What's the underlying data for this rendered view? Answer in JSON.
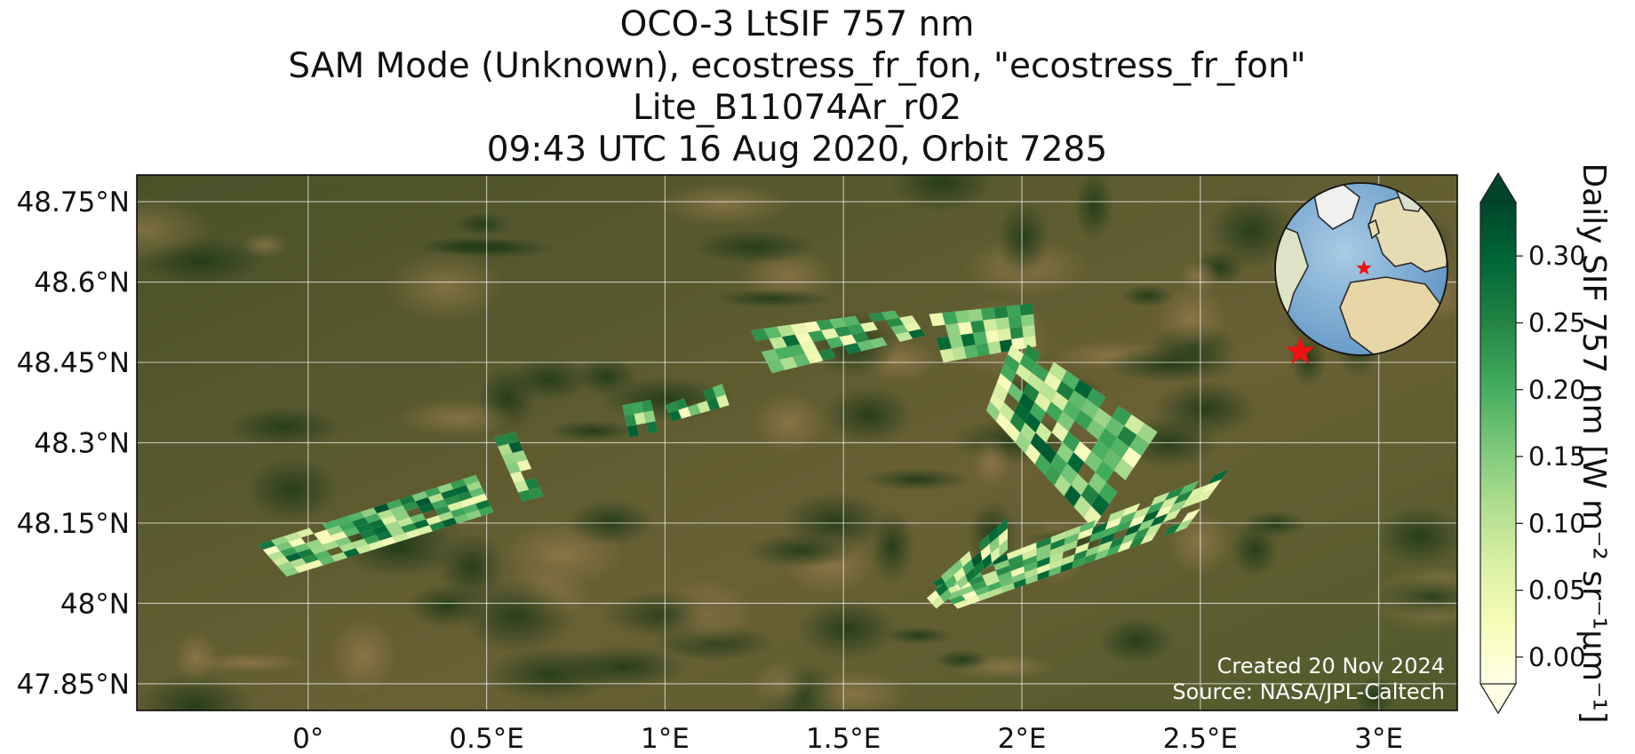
{
  "title": {
    "line1": "OCO-3 LtSIF 757 nm",
    "line2": "SAM Mode (Unknown), ecostress_fr_fon, \"ecostress_fr_fon\"",
    "line3": "Lite_B11074Ar_r02",
    "line4": "09:43 UTC 16 Aug 2020, Orbit 7285"
  },
  "map": {
    "lon_range": [
      -0.48,
      3.22
    ],
    "lat_range": [
      47.8,
      48.8
    ],
    "lat_ticks": [
      {
        "value": 48.75,
        "label": "48.75°N"
      },
      {
        "value": 48.6,
        "label": "48.6°N"
      },
      {
        "value": 48.45,
        "label": "48.45°N"
      },
      {
        "value": 48.3,
        "label": "48.3°N"
      },
      {
        "value": 48.15,
        "label": "48.15°N"
      },
      {
        "value": 48.0,
        "label": "48°N"
      },
      {
        "value": 47.85,
        "label": "47.85°N"
      }
    ],
    "lon_ticks": [
      {
        "value": 0,
        "label": "0°"
      },
      {
        "value": 0.5,
        "label": "0.5°E"
      },
      {
        "value": 1,
        "label": "1°E"
      },
      {
        "value": 1.5,
        "label": "1.5°E"
      },
      {
        "value": 2,
        "label": "2°E"
      },
      {
        "value": 2.5,
        "label": "2.5°E"
      },
      {
        "value": 3,
        "label": "3°E"
      }
    ],
    "target_marker": {
      "lon": 2.78,
      "lat": 48.47
    },
    "credit_line1": "Created 20 Nov 2024",
    "credit_line2": "Source: NASA/JPL-Caltech"
  },
  "colorbar": {
    "label": "Daily SIF 757 nm [W m⁻² sr⁻¹μm⁻¹]",
    "range": [
      -0.02,
      0.34
    ],
    "ticks": [
      {
        "value": 0.0,
        "label": "0.00"
      },
      {
        "value": 0.05,
        "label": "0.05"
      },
      {
        "value": 0.1,
        "label": "0.10"
      },
      {
        "value": 0.15,
        "label": "0.15"
      },
      {
        "value": 0.2,
        "label": "0.20"
      },
      {
        "value": 0.25,
        "label": "0.25"
      },
      {
        "value": 0.3,
        "label": "0.30"
      }
    ],
    "colors": [
      "#ffffe5",
      "#f7fcb9",
      "#d9f0a3",
      "#addd8e",
      "#78c679",
      "#41ab5d",
      "#238443",
      "#006837",
      "#004529"
    ]
  },
  "swaths": [
    {
      "name": "swath-1",
      "corners": [
        [
          -0.14,
          48.11
        ],
        [
          0.47,
          48.24
        ],
        [
          0.52,
          48.17
        ],
        [
          -0.06,
          48.05
        ]
      ],
      "cols": 17,
      "rows": 6
    },
    {
      "name": "swath-2",
      "corners": [
        [
          0.52,
          48.31
        ],
        [
          0.58,
          48.32
        ],
        [
          0.66,
          48.2
        ],
        [
          0.6,
          48.19
        ]
      ],
      "cols": 2,
      "rows": 7
    },
    {
      "name": "swath-3",
      "corners": [
        [
          0.88,
          48.37
        ],
        [
          0.96,
          48.38
        ],
        [
          0.98,
          48.32
        ],
        [
          0.9,
          48.31
        ]
      ],
      "cols": 3,
      "rows": 3
    },
    {
      "name": "swath-4",
      "corners": [
        [
          1.0,
          48.37
        ],
        [
          1.16,
          48.41
        ],
        [
          1.18,
          48.37
        ],
        [
          1.02,
          48.34
        ]
      ],
      "cols": 6,
      "rows": 2
    },
    {
      "name": "swath-5",
      "corners": [
        [
          1.24,
          48.51
        ],
        [
          1.68,
          48.55
        ],
        [
          1.73,
          48.5
        ],
        [
          1.3,
          48.43
        ]
      ],
      "cols": 12,
      "rows": 4
    },
    {
      "name": "swath-6",
      "corners": [
        [
          1.74,
          48.54
        ],
        [
          2.03,
          48.56
        ],
        [
          2.04,
          48.48
        ],
        [
          1.78,
          48.45
        ]
      ],
      "cols": 8,
      "rows": 4
    },
    {
      "name": "swath-7",
      "corners": [
        [
          1.98,
          48.5
        ],
        [
          2.38,
          48.32
        ],
        [
          2.2,
          48.14
        ],
        [
          1.9,
          48.36
        ]
      ],
      "cols": 11,
      "rows": 8
    },
    {
      "name": "swath-8",
      "corners": [
        [
          1.75,
          48.04
        ],
        [
          2.2,
          48.22
        ],
        [
          2.58,
          48.25
        ],
        [
          2.46,
          48.14
        ],
        [
          2.16,
          48.06
        ],
        [
          1.82,
          47.99
        ]
      ],
      "cols": 20,
      "rows": 6
    },
    {
      "name": "swath-9",
      "corners": [
        [
          1.72,
          48.02
        ],
        [
          1.96,
          48.16
        ],
        [
          1.96,
          48.1
        ],
        [
          1.76,
          47.99
        ]
      ],
      "cols": 9,
      "rows": 3
    }
  ]
}
